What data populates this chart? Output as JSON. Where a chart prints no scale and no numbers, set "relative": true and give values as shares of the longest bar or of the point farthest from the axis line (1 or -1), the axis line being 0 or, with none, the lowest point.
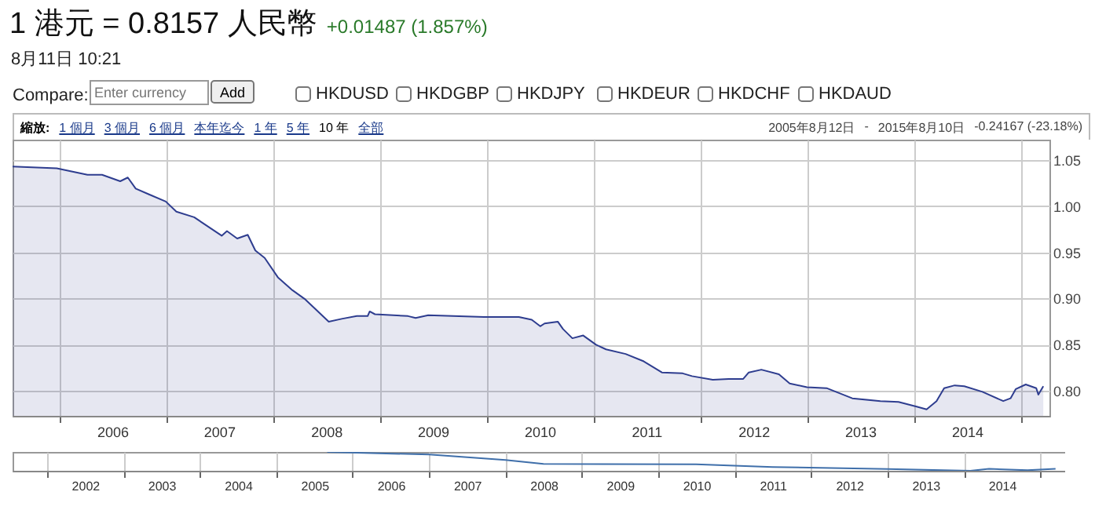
{
  "chart_data": [
    {
      "type": "area",
      "title": "1 港元 = 0.8157 人民幣",
      "subtitle": "+0.01487 (1.857%)",
      "x": [
        "2005-07-26",
        "2005-12-24",
        "2006-04-08",
        "2006-05-28",
        "2006-07-29",
        "2006-08-24",
        "2006-09-20",
        "2006-11-03",
        "2007-01-01",
        "2007-02-06",
        "2007-04-08",
        "2007-07-11",
        "2007-07-29",
        "2007-09-02",
        "2007-10-08",
        "2007-11-03",
        "2007-12-05",
        "2008-01-19",
        "2008-03-09",
        "2008-04-22",
        "2008-07-11",
        "2008-08-24",
        "2008-10-15",
        "2008-11-21",
        "2008-11-28",
        "2008-12-16",
        "2009-04-08",
        "2009-05-04",
        "2009-06-16",
        "2009-12-24",
        "2010-04-22",
        "2010-06-05",
        "2010-07-04",
        "2010-07-19",
        "2010-09-02",
        "2010-09-20",
        "2010-10-22",
        "2010-11-28",
        "2011-01-11",
        "2011-02-14",
        "2011-04-22",
        "2011-06-23",
        "2011-08-24",
        "2011-11-03",
        "2011-12-05",
        "2012-02-14",
        "2012-04-08",
        "2012-05-28",
        "2012-06-16",
        "2012-07-29",
        "2012-09-27",
        "2012-11-03",
        "2013-01-01",
        "2013-03-09",
        "2013-06-05",
        "2013-09-09",
        "2013-11-10",
        "2014-01-11",
        "2014-02-14",
        "2014-03-20",
        "2014-04-15",
        "2014-05-21",
        "2014-06-23",
        "2014-08-24",
        "2014-11-03",
        "2014-11-28",
        "2014-12-16",
        "2015-01-19",
        "2015-02-24",
        "2015-03-03",
        "2015-03-20"
      ],
      "series": [
        {
          "color": "#2e3d8f",
          "values": [
            1.043,
            1.041,
            1.034,
            1.034,
            1.027,
            1.031,
            1.019,
            1.013,
            1.005,
            0.994,
            0.988,
            0.968,
            0.973,
            0.965,
            0.969,
            0.952,
            0.944,
            0.923,
            0.909,
            0.899,
            0.875,
            0.878,
            0.881,
            0.881,
            0.886,
            0.883,
            0.881,
            0.879,
            0.882,
            0.88,
            0.88,
            0.877,
            0.87,
            0.873,
            0.875,
            0.867,
            0.857,
            0.86,
            0.85,
            0.845,
            0.84,
            0.832,
            0.82,
            0.819,
            0.816,
            0.812,
            0.813,
            0.813,
            0.82,
            0.823,
            0.818,
            0.808,
            0.804,
            0.803,
            0.792,
            0.789,
            0.788,
            0.783,
            0.78,
            0.789,
            0.803,
            0.806,
            0.805,
            0.799,
            0.789,
            0.792,
            0.802,
            0.807,
            0.803,
            0.796,
            0.805
          ]
        }
      ],
      "xlim": [
        "2005-07-26",
        "2015-04-10"
      ],
      "xticks": [
        {
          "value": "2006-01-01",
          "label": null
        },
        {
          "value": "2006-07-02",
          "label": "2006"
        },
        {
          "value": "2007-01-01",
          "label": null
        },
        {
          "value": "2007-07-02",
          "label": "2007"
        },
        {
          "value": "2008-01-01",
          "label": null
        },
        {
          "value": "2008-07-02",
          "label": "2008"
        },
        {
          "value": "2009-01-01",
          "label": null
        },
        {
          "value": "2009-07-02",
          "label": "2009"
        },
        {
          "value": "2010-01-01",
          "label": null
        },
        {
          "value": "2010-07-02",
          "label": "2010"
        },
        {
          "value": "2011-01-01",
          "label": null
        },
        {
          "value": "2011-07-02",
          "label": "2011"
        },
        {
          "value": "2012-01-01",
          "label": null
        },
        {
          "value": "2012-07-02",
          "label": "2012"
        },
        {
          "value": "2013-01-01",
          "label": null
        },
        {
          "value": "2013-07-02",
          "label": "2013"
        },
        {
          "value": "2014-01-01",
          "label": null
        },
        {
          "value": "2014-07-02",
          "label": "2014"
        },
        {
          "value": "2015-01-01",
          "label": null
        }
      ],
      "ylim": [
        0.773,
        1.072
      ],
      "yticks": [
        {
          "value": 0.8,
          "label": "0.80"
        },
        {
          "value": 0.85,
          "label": "0.85"
        },
        {
          "value": 0.9,
          "label": "0.90"
        },
        {
          "value": 0.95,
          "label": "0.95"
        },
        {
          "value": 1.0,
          "label": "1.00"
        },
        {
          "value": 1.05,
          "label": "1.05"
        }
      ],
      "grid": true,
      "annotations": [
        "8月11日 10:21",
        "Compare:",
        "Enter currency",
        "Add",
        "HKDUSD",
        "HKDGBP",
        "HKDJPY",
        "HKDEUR",
        "HKDCHF",
        "HKDAUD",
        "縮放:",
        "1 個月",
        "3 個月",
        "6 個月",
        "本年迄今",
        "1 年",
        "5 年",
        "10 年",
        "全部",
        "2005年8月12日",
        "-",
        "2015年8月10日",
        "-0.24167 (-23.18%)"
      ]
    },
    {
      "type": "line",
      "relative": true,
      "x": [
        "2005-09-01",
        "2007-01-01",
        "2008-01-01",
        "2008-07-01",
        "2010-07-01",
        "2011-07-01",
        "2013-01-01",
        "2014-02-01",
        "2014-05-01",
        "2014-11-01",
        "2015-03-15"
      ],
      "series": [
        {
          "color": "#3f6faa",
          "values": [
            1,
            0.86,
            0.57,
            0.36,
            0.34,
            0.2,
            0.09,
            0,
            0.1,
            0.03,
            0.1
          ]
        }
      ],
      "xlim": [
        "2001-07-20",
        "2015-04-30"
      ],
      "xticks": [
        {
          "value": "2002-01-01",
          "label": null
        },
        {
          "value": "2002-07-02",
          "label": "2002"
        },
        {
          "value": "2003-01-01",
          "label": null
        },
        {
          "value": "2003-07-02",
          "label": "2003"
        },
        {
          "value": "2004-01-01",
          "label": null
        },
        {
          "value": "2004-07-02",
          "label": "2004"
        },
        {
          "value": "2005-01-01",
          "label": null
        },
        {
          "value": "2005-07-02",
          "label": "2005"
        },
        {
          "value": "2006-01-01",
          "label": null
        },
        {
          "value": "2006-07-02",
          "label": "2006"
        },
        {
          "value": "2007-01-01",
          "label": null
        },
        {
          "value": "2007-07-02",
          "label": "2007"
        },
        {
          "value": "2008-01-01",
          "label": null
        },
        {
          "value": "2008-07-02",
          "label": "2008"
        },
        {
          "value": "2009-01-01",
          "label": null
        },
        {
          "value": "2009-07-02",
          "label": "2009"
        },
        {
          "value": "2010-01-01",
          "label": null
        },
        {
          "value": "2010-07-02",
          "label": "2010"
        },
        {
          "value": "2011-01-01",
          "label": null
        },
        {
          "value": "2011-07-02",
          "label": "2011"
        },
        {
          "value": "2012-01-01",
          "label": null
        },
        {
          "value": "2012-07-02",
          "label": "2012"
        },
        {
          "value": "2013-01-01",
          "label": null
        },
        {
          "value": "2013-07-02",
          "label": "2013"
        },
        {
          "value": "2014-01-01",
          "label": null
        },
        {
          "value": "2014-07-02",
          "label": "2014"
        },
        {
          "value": "2015-01-01",
          "label": null
        }
      ],
      "grid": "x"
    }
  ]
}
